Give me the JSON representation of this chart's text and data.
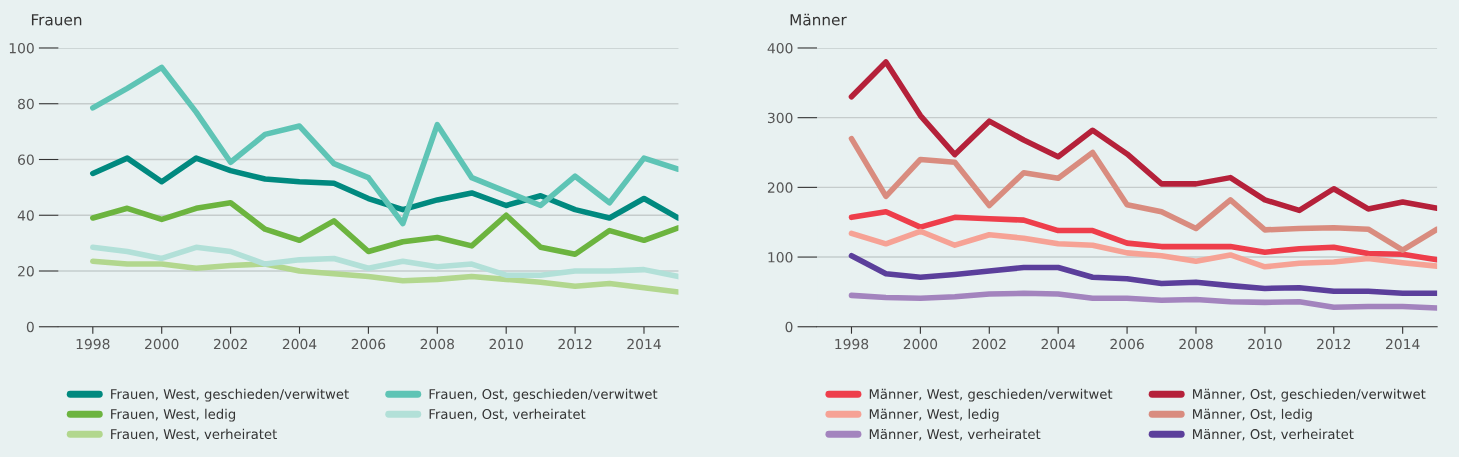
{
  "chart_data": [
    {
      "type": "line",
      "title": "Frauen",
      "x": [
        1998,
        1999,
        2000,
        2001,
        2002,
        2003,
        2004,
        2005,
        2006,
        2007,
        2008,
        2009,
        2010,
        2011,
        2012,
        2013,
        2014,
        2015
      ],
      "xlim": [
        1997,
        2015
      ],
      "xticks": [
        1998,
        2000,
        2002,
        2004,
        2006,
        2008,
        2010,
        2012,
        2014
      ],
      "ylim": [
        0,
        100
      ],
      "yticks": [
        0,
        20,
        40,
        60,
        80,
        100
      ],
      "grid": "y",
      "legend": "bottom",
      "series": [
        {
          "name": "Frauen, West, geschieden/verwitwet",
          "color": "#00897f",
          "values": [
            55,
            60.5,
            52,
            60.5,
            56,
            53,
            52,
            51.5,
            46,
            42,
            45.5,
            48,
            43.5,
            47,
            42,
            39,
            46,
            39
          ]
        },
        {
          "name": "Frauen, West, ledig",
          "color": "#6cb43f",
          "values": [
            39,
            42.5,
            38.5,
            42.5,
            44.5,
            35,
            31,
            38,
            27,
            30.5,
            32,
            29,
            40,
            28.5,
            26,
            34.5,
            31,
            35.5
          ]
        },
        {
          "name": "Frauen, West, verheiratet",
          "color": "#b2d78e",
          "values": [
            23.5,
            22.5,
            22.5,
            21,
            22,
            22.5,
            20,
            19,
            18,
            16.5,
            17,
            18,
            17,
            16,
            14.5,
            15.5,
            14,
            12.5
          ]
        },
        {
          "name": "Frauen, Ost, geschieden/verwitwet",
          "color": "#5ec4b5",
          "values": [
            78.5,
            85.5,
            93,
            77,
            59,
            69,
            72,
            58.5,
            53.5,
            37,
            72.5,
            53.5,
            48.5,
            43.5,
            54,
            44.5,
            60.5,
            56.5
          ]
        },
        {
          "name": "Frauen, Ost, verheiratet",
          "color": "#b2e0d8",
          "values": [
            28.5,
            27,
            24.5,
            28.5,
            27,
            22.5,
            24,
            24.5,
            21,
            23.5,
            21.5,
            22.5,
            18.5,
            18.5,
            20,
            20,
            20.5,
            18
          ]
        }
      ]
    },
    {
      "type": "line",
      "title": "Männer",
      "x": [
        1998,
        1999,
        2000,
        2001,
        2002,
        2003,
        2004,
        2005,
        2006,
        2007,
        2008,
        2009,
        2010,
        2011,
        2012,
        2013,
        2014,
        2015
      ],
      "xlim": [
        1997,
        2015
      ],
      "xticks": [
        1998,
        2000,
        2002,
        2004,
        2006,
        2008,
        2010,
        2012,
        2014
      ],
      "ylim": [
        0,
        400
      ],
      "yticks": [
        0,
        100,
        200,
        300,
        400
      ],
      "grid": "y",
      "legend": "bottom",
      "series": [
        {
          "name": "Männer, West, geschieden/verwitwet",
          "color": "#ee3e4b",
          "values": [
            157,
            165,
            143,
            157,
            155,
            153,
            138,
            138,
            120,
            115,
            115,
            115,
            107,
            112,
            114,
            105,
            104,
            96
          ]
        },
        {
          "name": "Männer, West, ledig",
          "color": "#f6a295",
          "values": [
            134,
            119,
            137,
            117,
            132,
            127,
            119,
            117,
            106,
            102,
            94,
            103,
            86,
            91,
            93,
            98,
            92,
            87
          ]
        },
        {
          "name": "Männer, West, verheiratet",
          "color": "#a384be",
          "values": [
            45,
            42,
            41,
            43,
            47,
            48,
            47,
            41,
            41,
            38,
            39,
            36,
            35,
            36,
            28,
            29,
            29,
            27
          ]
        },
        {
          "name": "Männer, Ost, geschieden/verwitwet",
          "color": "#b5213a",
          "values": [
            330,
            380,
            303,
            247,
            295,
            268,
            244,
            282,
            248,
            205,
            205,
            214,
            182,
            167,
            198,
            169,
            179,
            170
          ]
        },
        {
          "name": "Männer, Ost, ledig",
          "color": "#d98c7f",
          "values": [
            270,
            187,
            240,
            236,
            174,
            221,
            213,
            250,
            175,
            165,
            141,
            182,
            139,
            141,
            142,
            140,
            110,
            140
          ]
        },
        {
          "name": "Männer, Ost, verheiratet",
          "color": "#5b3f9b",
          "values": [
            102,
            76,
            71,
            75,
            80,
            85,
            85,
            71,
            69,
            62,
            64,
            59,
            55,
            56,
            51,
            51,
            48,
            48
          ]
        }
      ]
    }
  ]
}
